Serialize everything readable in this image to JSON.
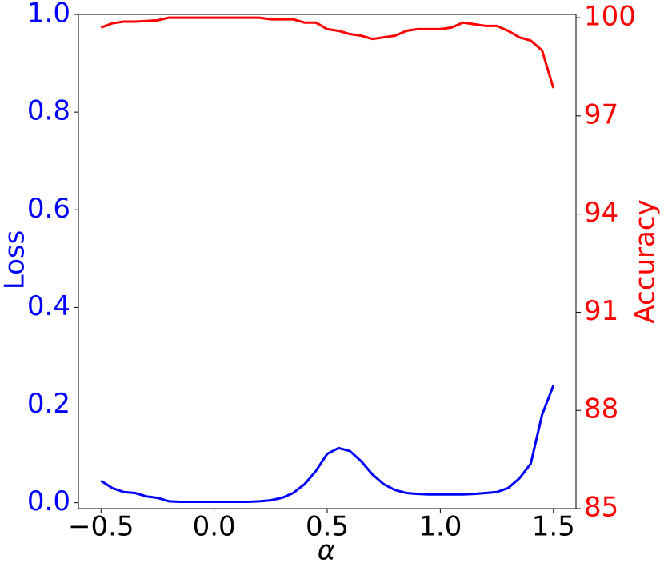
{
  "chart_data": {
    "type": "line",
    "xlabel": "α",
    "ylabel": "Loss",
    "y2label": "Accuracy",
    "x": [
      -0.5,
      -0.45,
      -0.4,
      -0.35,
      -0.3,
      -0.25,
      -0.2,
      -0.15,
      -0.1,
      -0.05,
      0,
      0.05,
      0.1,
      0.15,
      0.2,
      0.25,
      0.3,
      0.35,
      0.4,
      0.45,
      0.5,
      0.55,
      0.6,
      0.65,
      0.7,
      0.75,
      0.8,
      0.85,
      0.9,
      0.95,
      1,
      1.05,
      1.1,
      1.15,
      1.2,
      1.25,
      1.3,
      1.35,
      1.4,
      1.45,
      1.5
    ],
    "series": [
      {
        "name": "Loss",
        "color": "#0000ff",
        "axis": "y",
        "values": [
          0.045,
          0.03,
          0.022,
          0.02,
          0.013,
          0.01,
          0.003,
          0.002,
          0.002,
          0.002,
          0.002,
          0.002,
          0.002,
          0.002,
          0.003,
          0.005,
          0.01,
          0.02,
          0.038,
          0.065,
          0.1,
          0.112,
          0.106,
          0.085,
          0.058,
          0.038,
          0.026,
          0.02,
          0.018,
          0.017,
          0.017,
          0.017,
          0.017,
          0.018,
          0.02,
          0.022,
          0.03,
          0.05,
          0.08,
          0.18,
          0.24
        ]
      },
      {
        "name": "Accuracy",
        "color": "#ff0000",
        "axis": "y2",
        "values": [
          99.7,
          99.83,
          99.88,
          99.88,
          99.9,
          99.92,
          100,
          100,
          100,
          100,
          100,
          100,
          100,
          100,
          100,
          99.95,
          99.95,
          99.95,
          99.85,
          99.85,
          99.65,
          99.6,
          99.5,
          99.45,
          99.35,
          99.4,
          99.45,
          99.6,
          99.65,
          99.65,
          99.65,
          99.7,
          99.85,
          99.8,
          99.75,
          99.75,
          99.6,
          99.4,
          99.3,
          99.0,
          97.85
        ]
      }
    ],
    "xlim": [
      -0.6,
      1.6
    ],
    "xticks": [
      {
        "value": -0.5,
        "label": "−0.5"
      },
      {
        "value": 0,
        "label": "0.0"
      },
      0.5,
      {
        "value": 1,
        "label": "1.0"
      },
      1.5
    ],
    "ylim": [
      -0.012,
      1.0
    ],
    "yticks": [
      {
        "value": 0,
        "label": "0.0"
      },
      0.2,
      0.4,
      0.6,
      0.8,
      {
        "value": 1,
        "label": "1.0"
      }
    ],
    "y2lim": [
      85,
      100.1
    ],
    "y2ticks": [
      85,
      88,
      91,
      94,
      97,
      100
    ],
    "grid": false
  }
}
